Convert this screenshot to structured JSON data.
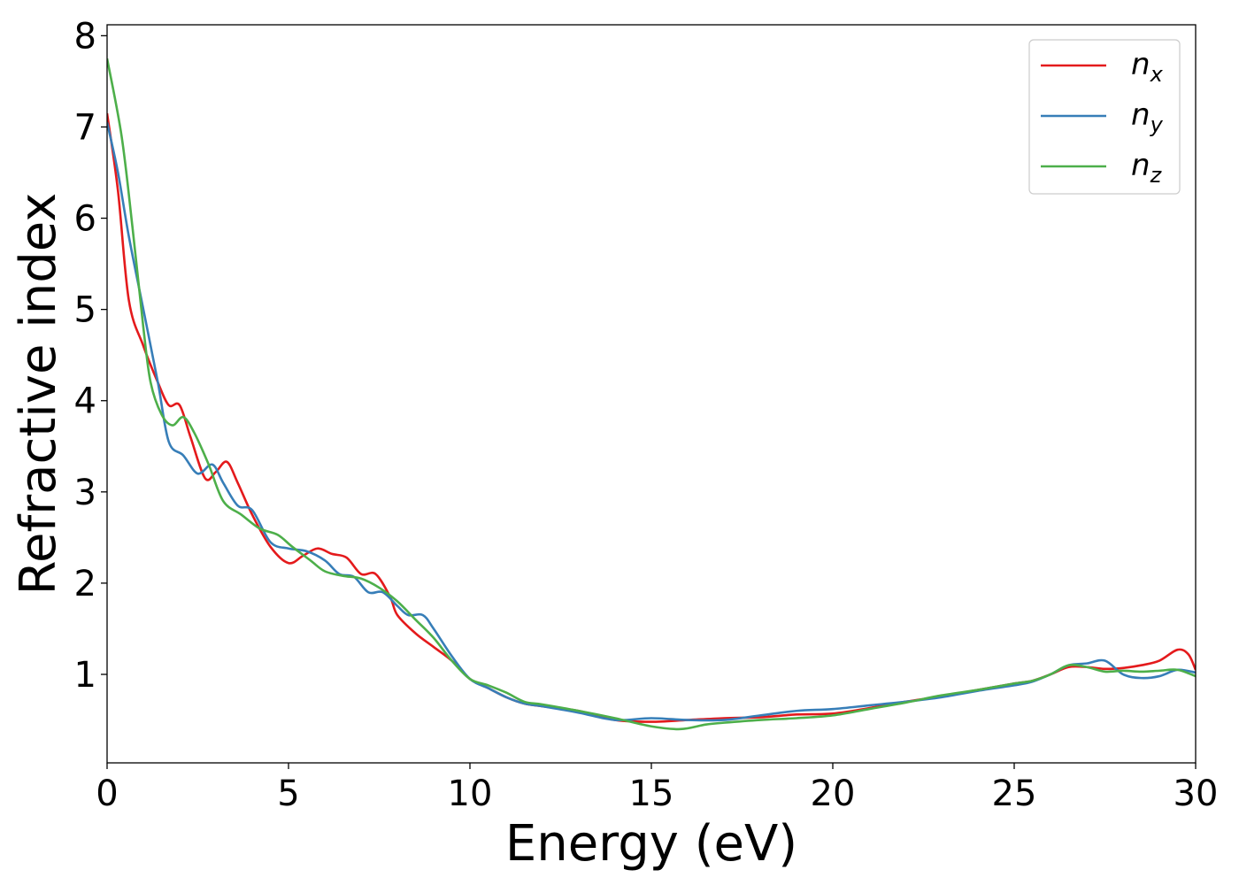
{
  "chart_data": {
    "type": "line",
    "title": "",
    "xlabel": "Energy (eV)",
    "ylabel": "Refractive index",
    "xlim": [
      0,
      30
    ],
    "ylim": [
      0.03,
      8.12
    ],
    "xticks": [
      0,
      5,
      10,
      15,
      20,
      25,
      30
    ],
    "yticks": [
      1,
      2,
      3,
      4,
      5,
      6,
      7,
      8
    ],
    "grid": false,
    "legend_position": "top-right",
    "series": [
      {
        "name": "n",
        "subscript": "x",
        "color": "#e41a1c",
        "points": [
          [
            0,
            7.15
          ],
          [
            0.3,
            6.3
          ],
          [
            0.6,
            5.1
          ],
          [
            1.0,
            4.6
          ],
          [
            1.4,
            4.2
          ],
          [
            1.7,
            3.95
          ],
          [
            2.0,
            3.95
          ],
          [
            2.3,
            3.6
          ],
          [
            2.7,
            3.15
          ],
          [
            3.0,
            3.22
          ],
          [
            3.3,
            3.33
          ],
          [
            3.6,
            3.1
          ],
          [
            4.0,
            2.75
          ],
          [
            4.5,
            2.4
          ],
          [
            5.0,
            2.22
          ],
          [
            5.4,
            2.3
          ],
          [
            5.8,
            2.38
          ],
          [
            6.2,
            2.32
          ],
          [
            6.6,
            2.28
          ],
          [
            7.0,
            2.1
          ],
          [
            7.4,
            2.1
          ],
          [
            7.8,
            1.85
          ],
          [
            8.0,
            1.65
          ],
          [
            8.5,
            1.45
          ],
          [
            9.0,
            1.3
          ],
          [
            9.5,
            1.15
          ],
          [
            10.0,
            0.95
          ],
          [
            10.5,
            0.85
          ],
          [
            11.0,
            0.75
          ],
          [
            11.5,
            0.68
          ],
          [
            12.0,
            0.65
          ],
          [
            13.0,
            0.6
          ],
          [
            14.0,
            0.5
          ],
          [
            15.0,
            0.48
          ],
          [
            16.0,
            0.5
          ],
          [
            17.0,
            0.52
          ],
          [
            18.0,
            0.53
          ],
          [
            19.0,
            0.56
          ],
          [
            20.0,
            0.57
          ],
          [
            21.0,
            0.63
          ],
          [
            22.0,
            0.7
          ],
          [
            23.0,
            0.76
          ],
          [
            24.0,
            0.83
          ],
          [
            25.0,
            0.9
          ],
          [
            25.5,
            0.93
          ],
          [
            26.0,
            1.0
          ],
          [
            26.5,
            1.08
          ],
          [
            27.0,
            1.08
          ],
          [
            27.5,
            1.06
          ],
          [
            28.0,
            1.07
          ],
          [
            28.5,
            1.1
          ],
          [
            29.0,
            1.15
          ],
          [
            29.5,
            1.27
          ],
          [
            29.8,
            1.22
          ],
          [
            30.0,
            1.05
          ]
        ]
      },
      {
        "name": "n",
        "subscript": "y",
        "color": "#377eb8",
        "points": [
          [
            0,
            7.05
          ],
          [
            0.3,
            6.5
          ],
          [
            0.6,
            5.8
          ],
          [
            1.0,
            5.0
          ],
          [
            1.4,
            4.2
          ],
          [
            1.7,
            3.55
          ],
          [
            2.1,
            3.4
          ],
          [
            2.5,
            3.2
          ],
          [
            2.9,
            3.3
          ],
          [
            3.2,
            3.1
          ],
          [
            3.6,
            2.85
          ],
          [
            4.0,
            2.8
          ],
          [
            4.5,
            2.45
          ],
          [
            5.0,
            2.38
          ],
          [
            5.5,
            2.35
          ],
          [
            6.0,
            2.25
          ],
          [
            6.4,
            2.1
          ],
          [
            6.8,
            2.07
          ],
          [
            7.2,
            1.9
          ],
          [
            7.6,
            1.9
          ],
          [
            8.0,
            1.75
          ],
          [
            8.3,
            1.65
          ],
          [
            8.7,
            1.65
          ],
          [
            9.0,
            1.5
          ],
          [
            9.5,
            1.2
          ],
          [
            10.0,
            0.95
          ],
          [
            10.5,
            0.85
          ],
          [
            11.0,
            0.75
          ],
          [
            11.5,
            0.68
          ],
          [
            12.0,
            0.65
          ],
          [
            13.0,
            0.58
          ],
          [
            14.0,
            0.5
          ],
          [
            15.0,
            0.52
          ],
          [
            16.0,
            0.5
          ],
          [
            17.0,
            0.5
          ],
          [
            18.0,
            0.55
          ],
          [
            19.0,
            0.6
          ],
          [
            20.0,
            0.62
          ],
          [
            21.0,
            0.66
          ],
          [
            22.0,
            0.7
          ],
          [
            23.0,
            0.75
          ],
          [
            24.0,
            0.82
          ],
          [
            25.0,
            0.88
          ],
          [
            25.5,
            0.92
          ],
          [
            26.0,
            1.0
          ],
          [
            26.5,
            1.1
          ],
          [
            27.0,
            1.12
          ],
          [
            27.5,
            1.15
          ],
          [
            28.0,
            1.0
          ],
          [
            28.5,
            0.96
          ],
          [
            29.0,
            0.98
          ],
          [
            29.5,
            1.05
          ],
          [
            30.0,
            1.02
          ]
        ]
      },
      {
        "name": "n",
        "subscript": "z",
        "color": "#4daf4a",
        "points": [
          [
            0,
            7.75
          ],
          [
            0.4,
            6.9
          ],
          [
            0.7,
            5.9
          ],
          [
            1.0,
            4.8
          ],
          [
            1.2,
            4.2
          ],
          [
            1.5,
            3.85
          ],
          [
            1.8,
            3.73
          ],
          [
            2.1,
            3.82
          ],
          [
            2.4,
            3.65
          ],
          [
            2.8,
            3.3
          ],
          [
            3.2,
            2.9
          ],
          [
            3.7,
            2.75
          ],
          [
            4.2,
            2.6
          ],
          [
            4.7,
            2.53
          ],
          [
            5.1,
            2.4
          ],
          [
            5.6,
            2.25
          ],
          [
            6.0,
            2.13
          ],
          [
            6.5,
            2.08
          ],
          [
            7.0,
            2.05
          ],
          [
            7.5,
            1.95
          ],
          [
            8.0,
            1.8
          ],
          [
            8.5,
            1.6
          ],
          [
            9.0,
            1.4
          ],
          [
            9.5,
            1.15
          ],
          [
            10.0,
            0.95
          ],
          [
            10.5,
            0.88
          ],
          [
            11.0,
            0.8
          ],
          [
            11.5,
            0.7
          ],
          [
            12.0,
            0.67
          ],
          [
            13.0,
            0.6
          ],
          [
            14.0,
            0.52
          ],
          [
            15.0,
            0.43
          ],
          [
            15.8,
            0.4
          ],
          [
            16.5,
            0.45
          ],
          [
            17.0,
            0.47
          ],
          [
            18.0,
            0.5
          ],
          [
            19.0,
            0.52
          ],
          [
            20.0,
            0.55
          ],
          [
            21.0,
            0.62
          ],
          [
            22.0,
            0.69
          ],
          [
            23.0,
            0.77
          ],
          [
            24.0,
            0.83
          ],
          [
            25.0,
            0.9
          ],
          [
            25.5,
            0.93
          ],
          [
            26.0,
            1.0
          ],
          [
            26.5,
            1.1
          ],
          [
            27.0,
            1.08
          ],
          [
            27.5,
            1.03
          ],
          [
            28.0,
            1.04
          ],
          [
            28.5,
            1.03
          ],
          [
            29.0,
            1.04
          ],
          [
            29.5,
            1.05
          ],
          [
            30.0,
            0.98
          ]
        ]
      }
    ]
  }
}
